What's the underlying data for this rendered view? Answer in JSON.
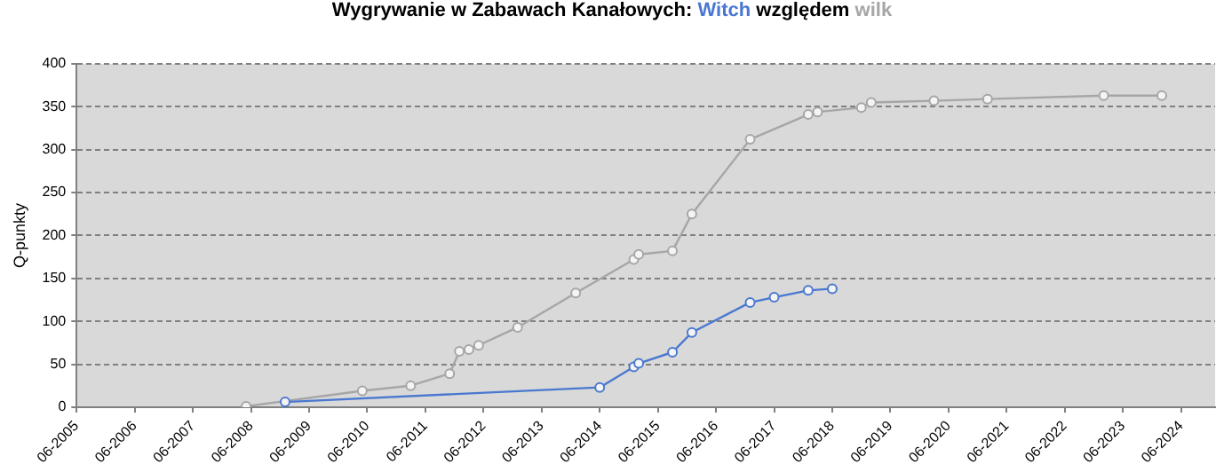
{
  "chart_data": {
    "type": "line",
    "title": "Wygrywanie w Zabawach Kanałowych:",
    "annotations": [
      "względem"
    ],
    "ylabel": "Q-punkty",
    "series": [
      {
        "name": "Witch",
        "color": "#4a78d0",
        "x": [
          "2009-01",
          "2014-06",
          "2015-01",
          "2015-02",
          "2015-09",
          "2016-01",
          "2017-01",
          "2017-06",
          "2018-01",
          "2018-06"
        ],
        "values": [
          6,
          23,
          47,
          51,
          64,
          87,
          122,
          128,
          136,
          138
        ]
      },
      {
        "name": "wilk",
        "color": "#a6a6a6",
        "x": [
          "2008-05",
          "2010-05",
          "2011-03",
          "2011-11",
          "2012-01",
          "2012-03",
          "2012-05",
          "2013-01",
          "2014-01",
          "2015-01",
          "2015-02",
          "2015-09",
          "2016-01",
          "2017-01",
          "2018-01",
          "2018-03",
          "2018-12",
          "2019-02",
          "2020-03",
          "2021-02",
          "2023-02",
          "2024-02"
        ],
        "values": [
          1,
          19,
          25,
          39,
          65,
          67,
          72,
          93,
          133,
          172,
          178,
          182,
          225,
          312,
          341,
          344,
          349,
          355,
          357,
          359,
          363,
          363
        ]
      }
    ],
    "xlim": [
      "2005-06",
      "2025-01"
    ],
    "xticks": [
      {
        "value": "2005-06",
        "label": "06-2005"
      },
      {
        "value": "2006-06",
        "label": "06-2006"
      },
      {
        "value": "2007-06",
        "label": "06-2007"
      },
      {
        "value": "2008-06",
        "label": "06-2008"
      },
      {
        "value": "2009-06",
        "label": "06-2009"
      },
      {
        "value": "2010-06",
        "label": "06-2010"
      },
      {
        "value": "2011-06",
        "label": "06-2011"
      },
      {
        "value": "2012-06",
        "label": "06-2012"
      },
      {
        "value": "2013-06",
        "label": "06-2013"
      },
      {
        "value": "2014-06",
        "label": "06-2014"
      },
      {
        "value": "2015-06",
        "label": "06-2015"
      },
      {
        "value": "2016-06",
        "label": "06-2016"
      },
      {
        "value": "2017-06",
        "label": "06-2017"
      },
      {
        "value": "2018-06",
        "label": "06-2018"
      },
      {
        "value": "2019-06",
        "label": "06-2019"
      },
      {
        "value": "2020-06",
        "label": "06-2020"
      },
      {
        "value": "2021-06",
        "label": "06-2021"
      },
      {
        "value": "2022-06",
        "label": "06-2022"
      },
      {
        "value": "2023-06",
        "label": "06-2023"
      },
      {
        "value": "2024-06",
        "label": "06-2024"
      }
    ],
    "ylim": [
      0,
      400
    ],
    "yticks": [
      0,
      50,
      100,
      150,
      200,
      250,
      300,
      350,
      400
    ],
    "grid": "y",
    "legend": false,
    "marker": "circle",
    "line_style": "solid"
  }
}
